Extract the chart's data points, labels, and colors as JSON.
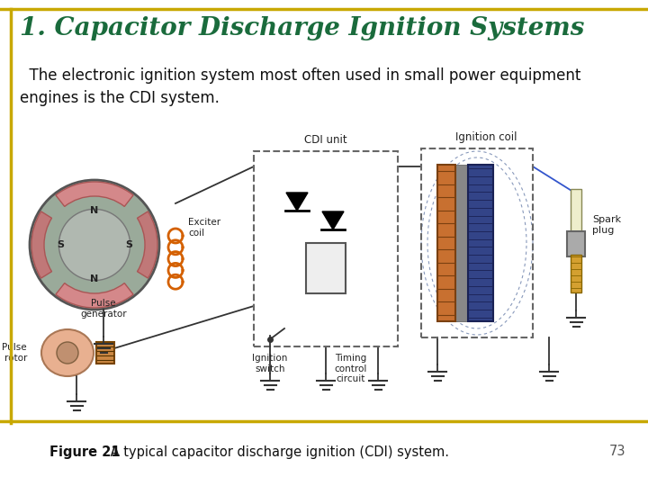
{
  "title": "1. Capacitor Discharge Ignition Systems",
  "title_color": "#1a6b3c",
  "title_fontsize": 20,
  "body_text": "  The electronic ignition system most often used in small power equipment\nengines is the CDI system.",
  "body_fontsize": 12,
  "caption_bold": "Figure 21",
  "caption_normal": " A typical capacitor discharge ignition (CDI) system.",
  "caption_fontsize": 10.5,
  "page_number": "73",
  "bg_color": "#ffffff",
  "gold_color": "#c8a800",
  "text_color": "#111111"
}
